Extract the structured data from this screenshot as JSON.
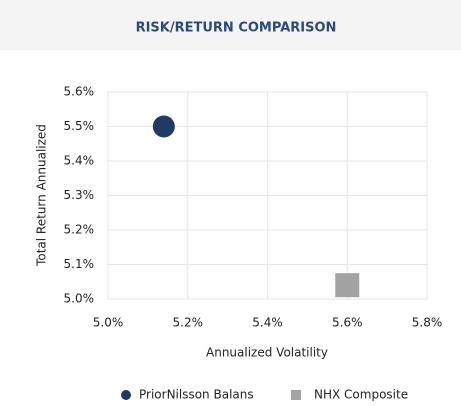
{
  "chart_data": {
    "type": "scatter",
    "title": "RISK/RETURN COMPARISON",
    "x_label": "Annualized Volatility",
    "y_label": "Total Return Annualized",
    "xlim": [
      5.0,
      5.8
    ],
    "ylim": [
      5.0,
      5.6
    ],
    "xticks": [
      {
        "value": 5.0,
        "label": "5.0%"
      },
      {
        "value": 5.2,
        "label": "5.2%"
      },
      {
        "value": 5.4,
        "label": "5.4%"
      },
      {
        "value": 5.6,
        "label": "5.6%"
      },
      {
        "value": 5.8,
        "label": "5.8%"
      }
    ],
    "yticks": [
      {
        "value": 5.0,
        "label": "5.0%"
      },
      {
        "value": 5.1,
        "label": "5.1%"
      },
      {
        "value": 5.2,
        "label": "5.2%"
      },
      {
        "value": 5.3,
        "label": "5.3%"
      },
      {
        "value": 5.4,
        "label": "5.4%"
      },
      {
        "value": 5.5,
        "label": "5.5%"
      },
      {
        "value": 5.6,
        "label": "5.6%"
      }
    ],
    "grid": true,
    "legend": "bottom",
    "series": [
      {
        "name": "PriorNilsson Balans",
        "color": "#1f3a64",
        "marker": "circle",
        "x": [
          5.14
        ],
        "values": [
          5.5
        ]
      },
      {
        "name": "NHX Composite",
        "color": "#a3a3a3",
        "marker": "square",
        "x": [
          5.6
        ],
        "values": [
          5.04
        ]
      }
    ]
  }
}
